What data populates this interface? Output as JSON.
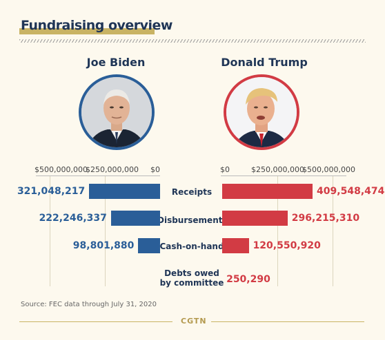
{
  "title": "Fundraising overview",
  "source": "Source: FEC data through July 31, 2020",
  "brand": "CGTN",
  "candidates": {
    "left": {
      "name": "Joe Biden"
    },
    "right": {
      "name": "Donald Trump"
    }
  },
  "axis": {
    "left_ticks": [
      "$500,000,000",
      "$250,000,000",
      "$0"
    ],
    "right_ticks": [
      "$0",
      "$250,000,000",
      "$500,000,000"
    ]
  },
  "colors": {
    "biden": "#2a5e98",
    "trump": "#d23b44",
    "accent": "#c9b364",
    "navy": "#1f3556",
    "background": "#fdf9ee"
  },
  "chart_data": {
    "type": "bar",
    "orientation": "horizontal-diverging",
    "categories": [
      "Receipts",
      "Disbursements",
      "Cash-on-hand",
      "Debts owed by committee"
    ],
    "category_lines": [
      [
        "Receipts"
      ],
      [
        "Disbursements"
      ],
      [
        "Cash-on-hand"
      ],
      [
        "Debts owed",
        "by committee"
      ]
    ],
    "series": [
      {
        "name": "Joe Biden",
        "values": [
          321048217,
          222246337,
          98801880,
          0
        ],
        "labels": [
          "321,048,217",
          "222,246,337",
          "98,801,880",
          ""
        ]
      },
      {
        "name": "Donald Trump",
        "values": [
          409548474,
          296215310,
          120550920,
          250290
        ],
        "labels": [
          "409,548,474",
          "296,215,310",
          "120,550,920",
          "250,290"
        ]
      }
    ],
    "xlim": [
      0,
      500000000
    ],
    "grid": true
  }
}
